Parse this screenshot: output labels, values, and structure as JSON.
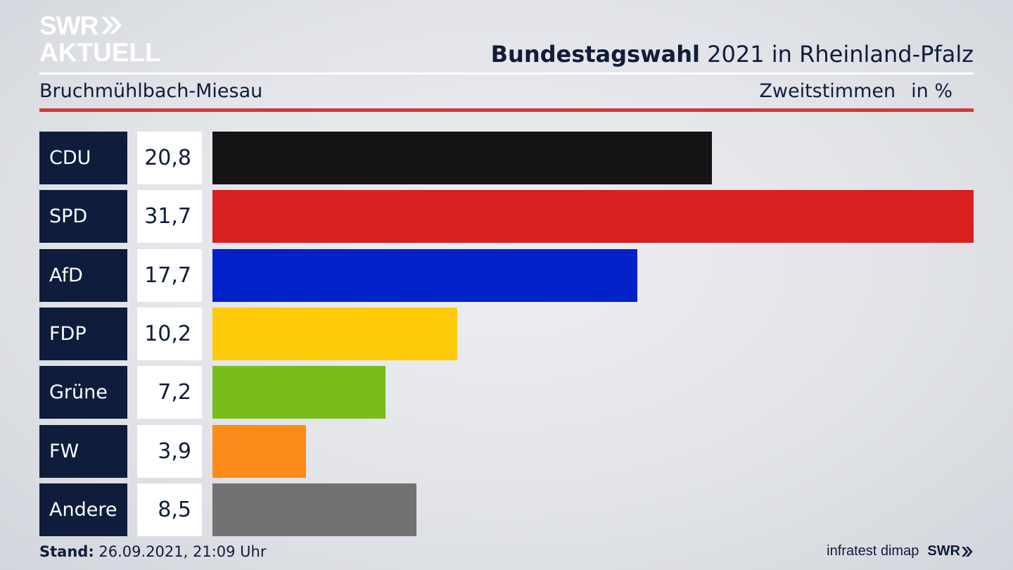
{
  "brand": {
    "line1": "SWR",
    "line2": "AKTUELL",
    "color": "#ffffff"
  },
  "header": {
    "title_bold": "Bundestagswahl",
    "title_rest": " 2021 in Rheinland-Pfalz",
    "subtitle": "Bruchmühlbach-Miesau",
    "measure": "Zweitstimmen",
    "unit": "in %"
  },
  "chart_data": {
    "type": "bar",
    "orientation": "horizontal",
    "categories": [
      "CDU",
      "SPD",
      "AfD",
      "FDP",
      "Grüne",
      "FW",
      "Andere"
    ],
    "values": [
      20.8,
      31.7,
      17.7,
      10.2,
      7.2,
      3.9,
      8.5
    ],
    "value_labels": [
      "20,8",
      "31,7",
      "17,7",
      "10,2",
      "7,2",
      "3,9",
      "8,5"
    ],
    "colors": [
      "#141414",
      "#d8201f",
      "#0022c8",
      "#fdcb0a",
      "#79bd1d",
      "#fd8b19",
      "#727272"
    ],
    "xlim": [
      0,
      31.7
    ]
  },
  "footer": {
    "stand_label": "Stand:",
    "stand_value": " 26.09.2021, 21:09 Uhr",
    "source": "infratest dimap",
    "logo": "SWR"
  },
  "colors": {
    "accent_red": "#d0393a",
    "navy": "#0f1c3b"
  }
}
